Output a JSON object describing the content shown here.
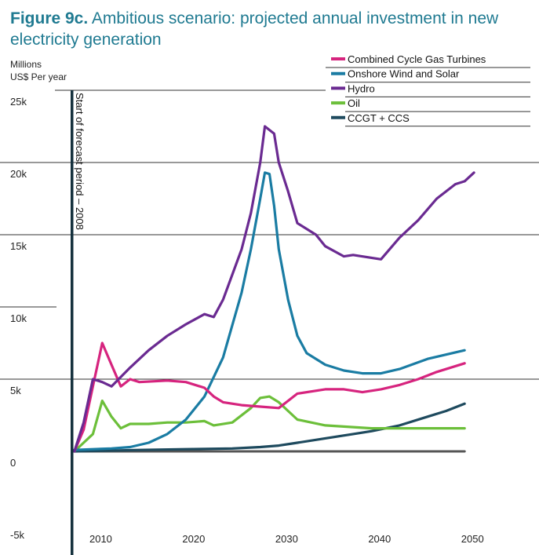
{
  "title": {
    "figure": "Figure 9c.",
    "text": " Ambitious scenario: projected annual investment in new electricity generation"
  },
  "units": {
    "line1": "Millions",
    "line2": "US$ Per year"
  },
  "forecast_label": "Start of forecast period – 2008",
  "chart_data": {
    "type": "line",
    "ylim": [
      -5000,
      25000
    ],
    "xlim": [
      2000,
      2058
    ],
    "x_ticks": [
      2010,
      2020,
      2030,
      2040,
      2050
    ],
    "x_tick_labels": [
      "2010",
      "2020",
      "2030",
      "2040",
      "2050"
    ],
    "y_ticks": [
      -5000,
      0,
      5000,
      10000,
      15000,
      20000,
      25000
    ],
    "y_tick_labels": [
      "-5k",
      "0",
      "5k",
      "10k",
      "15k",
      "20k",
      "25k"
    ],
    "forecast_start_year": 2008,
    "legend_position": "top-right",
    "series": [
      {
        "name": "Combined Cycle Gas Turbines",
        "color": "#d6247e",
        "points": [
          [
            2008,
            0
          ],
          [
            2009,
            1500
          ],
          [
            2010,
            4500
          ],
          [
            2011,
            7500
          ],
          [
            2012,
            6000
          ],
          [
            2013,
            4500
          ],
          [
            2014,
            5000
          ],
          [
            2015,
            4800
          ],
          [
            2018,
            4900
          ],
          [
            2020,
            4800
          ],
          [
            2022,
            4400
          ],
          [
            2023,
            3800
          ],
          [
            2024,
            3400
          ],
          [
            2026,
            3200
          ],
          [
            2028,
            3100
          ],
          [
            2030,
            3000
          ],
          [
            2031,
            3500
          ],
          [
            2032,
            4000
          ],
          [
            2035,
            4300
          ],
          [
            2037,
            4300
          ],
          [
            2039,
            4100
          ],
          [
            2041,
            4300
          ],
          [
            2043,
            4600
          ],
          [
            2045,
            5000
          ],
          [
            2047,
            5500
          ],
          [
            2050,
            6100
          ]
        ]
      },
      {
        "name": "Onshore Wind and Solar",
        "color": "#1a7ca3",
        "points": [
          [
            2008,
            100
          ],
          [
            2012,
            200
          ],
          [
            2014,
            300
          ],
          [
            2016,
            600
          ],
          [
            2018,
            1200
          ],
          [
            2020,
            2200
          ],
          [
            2022,
            3800
          ],
          [
            2024,
            6500
          ],
          [
            2026,
            11000
          ],
          [
            2027,
            14000
          ],
          [
            2028,
            17500
          ],
          [
            2028.5,
            19300
          ],
          [
            2029,
            19200
          ],
          [
            2029.5,
            17000
          ],
          [
            2030,
            14000
          ],
          [
            2031,
            10500
          ],
          [
            2032,
            8000
          ],
          [
            2033,
            6800
          ],
          [
            2035,
            6000
          ],
          [
            2037,
            5600
          ],
          [
            2039,
            5400
          ],
          [
            2041,
            5400
          ],
          [
            2043,
            5700
          ],
          [
            2046,
            6400
          ],
          [
            2050,
            7000
          ]
        ]
      },
      {
        "name": "Hydro",
        "color": "#6a2a91",
        "points": [
          [
            2008,
            0
          ],
          [
            2009,
            2000
          ],
          [
            2010,
            5000
          ],
          [
            2011,
            4800
          ],
          [
            2012,
            4500
          ],
          [
            2014,
            5800
          ],
          [
            2016,
            7000
          ],
          [
            2018,
            8000
          ],
          [
            2020,
            8800
          ],
          [
            2022,
            9500
          ],
          [
            2023,
            9300
          ],
          [
            2024,
            10500
          ],
          [
            2026,
            14000
          ],
          [
            2027,
            16500
          ],
          [
            2028,
            20000
          ],
          [
            2028.5,
            22500
          ],
          [
            2029.5,
            22000
          ],
          [
            2030,
            20000
          ],
          [
            2031,
            18000
          ],
          [
            2032,
            15800
          ],
          [
            2034,
            15000
          ],
          [
            2035,
            14200
          ],
          [
            2037,
            13500
          ],
          [
            2038,
            13600
          ],
          [
            2041,
            13300
          ],
          [
            2043,
            14800
          ],
          [
            2045,
            16000
          ],
          [
            2047,
            17500
          ],
          [
            2049,
            18500
          ],
          [
            2050,
            18700
          ],
          [
            2051,
            19300
          ]
        ]
      },
      {
        "name": "Oil",
        "color": "#6cbf3a",
        "points": [
          [
            2008,
            0
          ],
          [
            2010,
            1200
          ],
          [
            2011,
            3500
          ],
          [
            2012,
            2400
          ],
          [
            2013,
            1600
          ],
          [
            2014,
            1900
          ],
          [
            2016,
            1900
          ],
          [
            2018,
            2000
          ],
          [
            2020,
            2000
          ],
          [
            2022,
            2100
          ],
          [
            2023,
            1800
          ],
          [
            2025,
            2000
          ],
          [
            2027,
            3000
          ],
          [
            2028,
            3700
          ],
          [
            2029,
            3800
          ],
          [
            2030,
            3400
          ],
          [
            2031,
            2800
          ],
          [
            2032,
            2200
          ],
          [
            2035,
            1800
          ],
          [
            2040,
            1600
          ],
          [
            2045,
            1600
          ],
          [
            2050,
            1600
          ]
        ]
      },
      {
        "name": "CCGT + CCS",
        "color": "#1e4a5e",
        "points": [
          [
            2008,
            0
          ],
          [
            2015,
            100
          ],
          [
            2020,
            150
          ],
          [
            2025,
            200
          ],
          [
            2028,
            300
          ],
          [
            2030,
            400
          ],
          [
            2032,
            600
          ],
          [
            2035,
            900
          ],
          [
            2038,
            1200
          ],
          [
            2040,
            1400
          ],
          [
            2043,
            1800
          ],
          [
            2046,
            2400
          ],
          [
            2048,
            2800
          ],
          [
            2050,
            3300
          ]
        ]
      },
      {
        "name": "",
        "color": "#555555",
        "points": [
          [
            2008,
            0
          ],
          [
            2050,
            0
          ]
        ]
      }
    ]
  }
}
